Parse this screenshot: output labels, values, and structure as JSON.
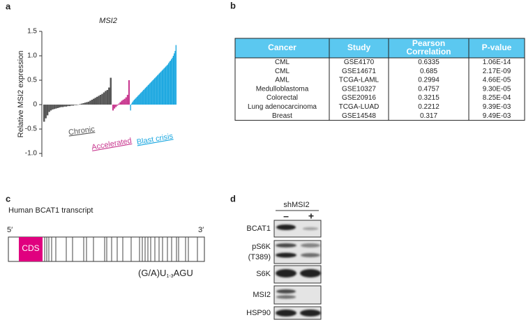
{
  "panel_labels": [
    "a",
    "b",
    "c",
    "d"
  ],
  "chart_data": {
    "type": "bar",
    "title": "MSI2",
    "ylabel": "Relative MSI2 expression",
    "ylim": [
      -1.07,
      1.5
    ],
    "yticks": [
      1.5,
      {
        "value": 1,
        "label": "1.0"
      },
      0.5,
      0,
      -0.5,
      {
        "value": -1,
        "label": "-1.0"
      }
    ],
    "series": [
      {
        "name": "Chronic",
        "color": "#555555",
        "values": [
          -0.35,
          -0.28,
          -0.22,
          -0.15,
          -0.12,
          -0.1,
          -0.09,
          -0.08,
          -0.07,
          -0.06,
          -0.05,
          -0.05,
          -0.04,
          -0.04,
          -0.03,
          -0.03,
          -0.02,
          -0.02,
          -0.01,
          -0.01,
          0,
          0.01,
          0.02,
          0.03,
          0.04,
          0.05,
          0.06,
          0.08,
          0.1,
          0.12,
          0.14,
          0.16,
          0.18,
          0.2,
          0.22,
          0.25,
          0.28,
          0.3,
          0.35,
          0.55
        ]
      },
      {
        "name": "Accelerated",
        "color": "#c8388f",
        "values": [
          -0.12,
          -0.08,
          -0.05,
          -0.02,
          0.02,
          0.05,
          0.08,
          0.1,
          0.12,
          0.15,
          0.2,
          0.5
        ]
      },
      {
        "name": "Blast crisis",
        "color": "#1aa7e0",
        "values": [
          -0.12,
          0.02,
          0.05,
          0.08,
          0.1,
          0.12,
          0.14,
          0.16,
          0.18,
          0.2,
          0.22,
          0.24,
          0.26,
          0.28,
          0.3,
          0.32,
          0.34,
          0.36,
          0.38,
          0.4,
          0.42,
          0.44,
          0.46,
          0.48,
          0.5,
          0.52,
          0.54,
          0.56,
          0.58,
          0.6,
          0.62,
          0.64,
          0.66,
          0.68,
          0.7,
          0.72,
          0.74,
          0.76,
          0.78,
          0.8,
          0.82,
          0.85,
          0.88,
          0.9,
          0.93,
          0.96,
          1,
          1.05,
          1.1,
          1.22
        ]
      }
    ]
  },
  "table": {
    "header": [
      "Cancer",
      "Study",
      "Pearson Correlation",
      "P-value"
    ],
    "rows": [
      [
        "CML",
        "GSE4170",
        "0.6335",
        "1.06E-14"
      ],
      [
        "CML",
        "GSE14671",
        "0.685",
        "2.17E-09"
      ],
      [
        "AML",
        "TCGA-LAML",
        "0.2994",
        "4.66E-05"
      ],
      [
        "Medulloblastoma",
        "GSE10327",
        "0.4757",
        "9.30E-05"
      ],
      [
        "Colorectal",
        "GSE20916",
        "0.3215",
        "8.25E-04"
      ],
      [
        "Lung adenocarcinoma",
        "TCGA-LUAD",
        "0.2212",
        "9.39E-03"
      ],
      [
        "Breast",
        "GSE14548",
        "0.317",
        "9.49E-03"
      ]
    ]
  },
  "transcript": {
    "title": "Human BCAT1 transcript",
    "five_prime": "5′",
    "three_prime": "3′",
    "cds": "CDS",
    "motif": [
      "(G/A)U",
      "1-3",
      "AGU"
    ]
  },
  "blot": {
    "condition": "shMSI2",
    "lanes": [
      "–",
      "+"
    ],
    "rows": [
      "BCAT1",
      "pS6K",
      "(T389)",
      "S6K",
      "MSI2",
      "HSP90"
    ]
  }
}
